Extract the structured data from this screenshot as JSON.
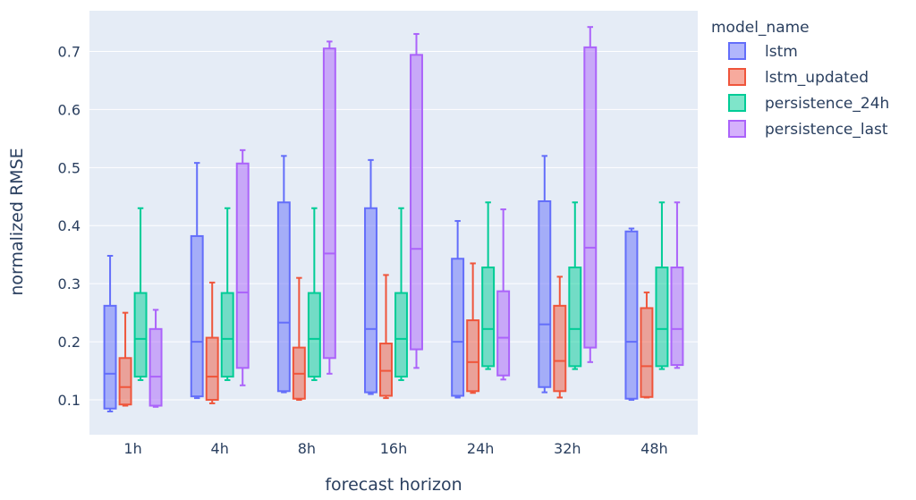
{
  "chart_data": {
    "type": "box",
    "title": "",
    "xlabel": "forecast horizon",
    "ylabel": "normalized RMSE",
    "ylim": [
      0.04,
      0.77
    ],
    "yticks": [
      0.1,
      0.2,
      0.3,
      0.4,
      0.5,
      0.6,
      0.7
    ],
    "ytick_labels": [
      "0.1",
      "0.2",
      "0.3",
      "0.4",
      "0.5",
      "0.6",
      "0.7"
    ],
    "grid": true,
    "legend_title": "model_name",
    "legend_position": "right",
    "categories": [
      "1h",
      "4h",
      "8h",
      "16h",
      "24h",
      "32h",
      "48h"
    ],
    "series": [
      {
        "name": "lstm",
        "color": "#636efa",
        "boxes": [
          {
            "min": 0.08,
            "q1": 0.085,
            "median": 0.145,
            "q3": 0.262,
            "max": 0.348
          },
          {
            "min": 0.103,
            "q1": 0.106,
            "median": 0.2,
            "q3": 0.382,
            "max": 0.508
          },
          {
            "min": 0.113,
            "q1": 0.115,
            "median": 0.233,
            "q3": 0.44,
            "max": 0.52
          },
          {
            "min": 0.11,
            "q1": 0.113,
            "median": 0.222,
            "q3": 0.43,
            "max": 0.513
          },
          {
            "min": 0.104,
            "q1": 0.107,
            "median": 0.2,
            "q3": 0.343,
            "max": 0.408
          },
          {
            "min": 0.113,
            "q1": 0.122,
            "median": 0.23,
            "q3": 0.442,
            "max": 0.52
          },
          {
            "min": 0.1,
            "q1": 0.102,
            "median": 0.2,
            "q3": 0.39,
            "max": 0.395
          }
        ]
      },
      {
        "name": "lstm_updated",
        "color": "#ef553b",
        "boxes": [
          {
            "min": 0.09,
            "q1": 0.092,
            "median": 0.122,
            "q3": 0.172,
            "max": 0.25
          },
          {
            "min": 0.094,
            "q1": 0.1,
            "median": 0.14,
            "q3": 0.207,
            "max": 0.302
          },
          {
            "min": 0.1,
            "q1": 0.102,
            "median": 0.145,
            "q3": 0.19,
            "max": 0.31
          },
          {
            "min": 0.103,
            "q1": 0.107,
            "median": 0.15,
            "q3": 0.197,
            "max": 0.315
          },
          {
            "min": 0.112,
            "q1": 0.115,
            "median": 0.165,
            "q3": 0.237,
            "max": 0.335
          },
          {
            "min": 0.104,
            "q1": 0.115,
            "median": 0.167,
            "q3": 0.262,
            "max": 0.312
          },
          {
            "min": 0.104,
            "q1": 0.105,
            "median": 0.158,
            "q3": 0.258,
            "max": 0.285
          }
        ]
      },
      {
        "name": "persistence_24h",
        "color": "#00cc96",
        "boxes": [
          {
            "min": 0.134,
            "q1": 0.14,
            "median": 0.205,
            "q3": 0.284,
            "max": 0.43
          },
          {
            "min": 0.134,
            "q1": 0.14,
            "median": 0.205,
            "q3": 0.284,
            "max": 0.43
          },
          {
            "min": 0.134,
            "q1": 0.14,
            "median": 0.205,
            "q3": 0.284,
            "max": 0.43
          },
          {
            "min": 0.134,
            "q1": 0.14,
            "median": 0.205,
            "q3": 0.284,
            "max": 0.43
          },
          {
            "min": 0.153,
            "q1": 0.158,
            "median": 0.222,
            "q3": 0.328,
            "max": 0.44
          },
          {
            "min": 0.153,
            "q1": 0.158,
            "median": 0.222,
            "q3": 0.328,
            "max": 0.44
          },
          {
            "min": 0.153,
            "q1": 0.158,
            "median": 0.222,
            "q3": 0.328,
            "max": 0.44
          }
        ]
      },
      {
        "name": "persistence_last",
        "color": "#ab63fa",
        "boxes": [
          {
            "min": 0.088,
            "q1": 0.09,
            "median": 0.14,
            "q3": 0.222,
            "max": 0.255
          },
          {
            "min": 0.125,
            "q1": 0.155,
            "median": 0.285,
            "q3": 0.507,
            "max": 0.53
          },
          {
            "min": 0.145,
            "q1": 0.172,
            "median": 0.352,
            "q3": 0.705,
            "max": 0.717
          },
          {
            "min": 0.155,
            "q1": 0.187,
            "median": 0.36,
            "q3": 0.694,
            "max": 0.73
          },
          {
            "min": 0.135,
            "q1": 0.142,
            "median": 0.207,
            "q3": 0.287,
            "max": 0.428
          },
          {
            "min": 0.165,
            "q1": 0.19,
            "median": 0.362,
            "q3": 0.707,
            "max": 0.742
          },
          {
            "min": 0.155,
            "q1": 0.16,
            "median": 0.222,
            "q3": 0.328,
            "max": 0.44
          }
        ]
      }
    ]
  }
}
